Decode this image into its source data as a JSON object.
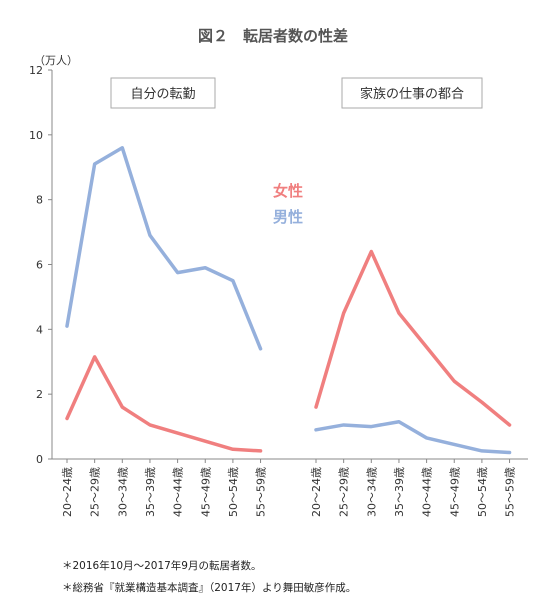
{
  "chart_data": {
    "type": "line",
    "title": "図２　転居者数の性差",
    "unit_label": "（万人）",
    "ylim": [
      0,
      12
    ],
    "y_ticks": [
      0,
      2,
      4,
      6,
      8,
      10,
      12
    ],
    "grid": false,
    "legend": {
      "placement": "center",
      "items": [
        {
          "name": "女性",
          "color": "#f07f7f"
        },
        {
          "name": "男性",
          "color": "#95b0dc"
        }
      ]
    },
    "panels": [
      {
        "label": "自分の転勤",
        "categories": [
          "20～24歳",
          "25～29歳",
          "30～34歳",
          "35～39歳",
          "40～44歳",
          "45～49歳",
          "50～54歳",
          "55～59歳"
        ],
        "series": [
          {
            "name": "男性",
            "values": [
              4.1,
              9.1,
              9.6,
              6.9,
              5.75,
              5.9,
              5.5,
              3.4
            ]
          },
          {
            "name": "女性",
            "values": [
              1.25,
              3.15,
              1.6,
              1.05,
              0.8,
              0.55,
              0.3,
              0.25
            ]
          }
        ]
      },
      {
        "label": "家族の仕事の都合",
        "categories": [
          "20～24歳",
          "25～29歳",
          "30～34歳",
          "35～39歳",
          "40～44歳",
          "45～49歳",
          "50～54歳",
          "55～59歳"
        ],
        "series": [
          {
            "name": "男性",
            "values": [
              0.9,
              1.05,
              1.0,
              1.15,
              0.65,
              0.45,
              0.25,
              0.2
            ]
          },
          {
            "name": "女性",
            "values": [
              1.6,
              4.5,
              6.4,
              4.5,
              3.45,
              2.4,
              1.75,
              1.05
            ]
          }
        ]
      }
    ]
  },
  "notes": [
    "＊2016年10月～2017年9月の転居者数。",
    "＊総務省『就業構造基本調査』（2017年）より舞田敏彦作成。"
  ]
}
